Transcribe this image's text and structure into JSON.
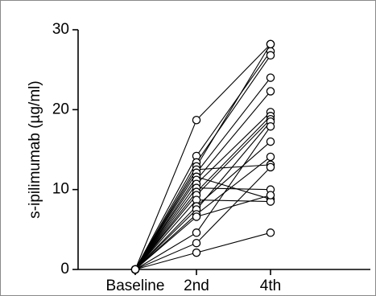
{
  "chart_data": {
    "type": "line",
    "title": "",
    "xlabel": "",
    "ylabel": "s-ipilimumab (µg/ml)",
    "categories": [
      "Baseline",
      "2nd",
      "4th"
    ],
    "yticks": [
      "0",
      "10",
      "20",
      "30"
    ],
    "ylim": [
      0,
      30
    ],
    "grid": false,
    "legend": "none",
    "style": {
      "line_color": "#000000",
      "marker": "open-circle",
      "marker_fill": "#ffffff"
    },
    "series": [
      {
        "values": [
          0,
          18.7,
          28.2
        ]
      },
      {
        "values": [
          0,
          14.2,
          27.3
        ]
      },
      {
        "values": [
          0,
          13.4,
          26.8
        ]
      },
      {
        "values": [
          0,
          12.9,
          28.2
        ]
      },
      {
        "values": [
          0,
          12.5,
          13.1
        ]
      },
      {
        "values": [
          0,
          12.1,
          24.0
        ]
      },
      {
        "values": [
          0,
          11.6,
          8.8
        ]
      },
      {
        "values": [
          0,
          11.2,
          22.3
        ]
      },
      {
        "values": [
          0,
          10.7,
          19.7
        ]
      },
      {
        "values": [
          0,
          10.2,
          10.0
        ]
      },
      {
        "values": [
          0,
          9.7,
          19.2
        ]
      },
      {
        "values": [
          0,
          9.3,
          18.8
        ]
      },
      {
        "values": [
          0,
          8.7,
          8.5
        ]
      },
      {
        "values": [
          0,
          7.9,
          16.0
        ]
      },
      {
        "values": [
          0,
          7.5,
          18.5
        ]
      },
      {
        "values": [
          0,
          6.9,
          14.1
        ]
      },
      {
        "values": [
          0,
          6.6,
          9.3
        ]
      },
      {
        "values": [
          0,
          4.6,
          17.9
        ]
      },
      {
        "values": [
          0,
          3.3,
          12.8
        ]
      },
      {
        "values": [
          0,
          2.1,
          4.6
        ]
      }
    ]
  }
}
